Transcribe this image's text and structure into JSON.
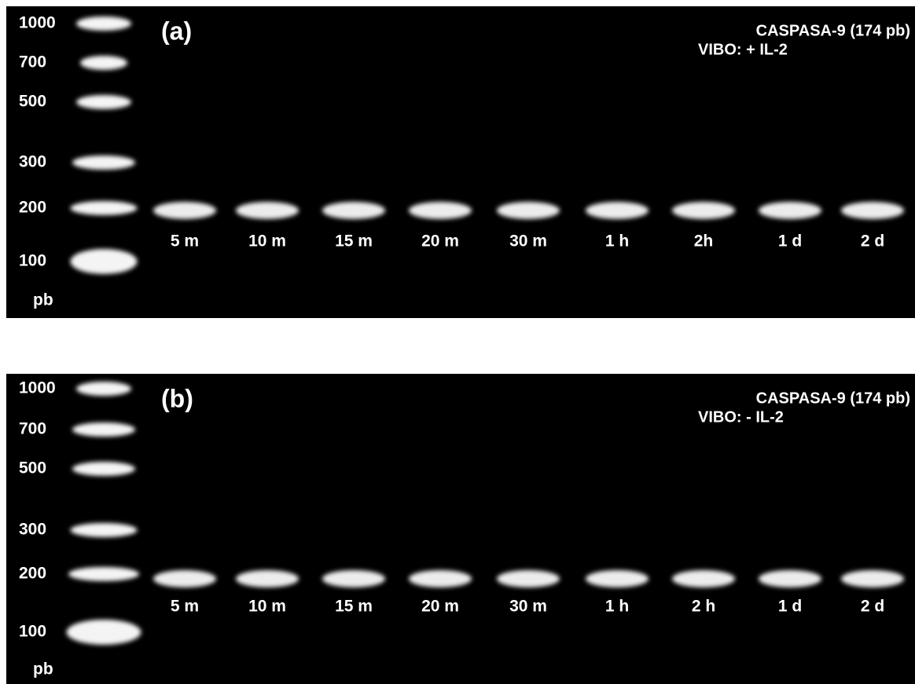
{
  "panels": [
    {
      "label": "(a)",
      "ladder": [
        "1000",
        "700",
        "500",
        "300",
        "200",
        "100"
      ],
      "unit": "pb",
      "title": "CASPASA-9 (174 pb)",
      "condition": "VIBO: + IL-2",
      "lanes": [
        "5 m",
        "10 m",
        "15 m",
        "20 m",
        "30 m",
        "1 h",
        "2h",
        "1 d",
        "2 d"
      ]
    },
    {
      "label": "(b)",
      "ladder": [
        "1000",
        "700",
        "500",
        "300",
        "200",
        "100"
      ],
      "unit": "pb",
      "title": "CASPASA-9 (174 pb)",
      "condition": "VIBO: - IL-2",
      "lanes": [
        "5 m",
        "10 m",
        "15 m",
        "20 m",
        "30 m",
        "1 h",
        "2 h",
        "1 d",
        "2 d"
      ]
    }
  ]
}
